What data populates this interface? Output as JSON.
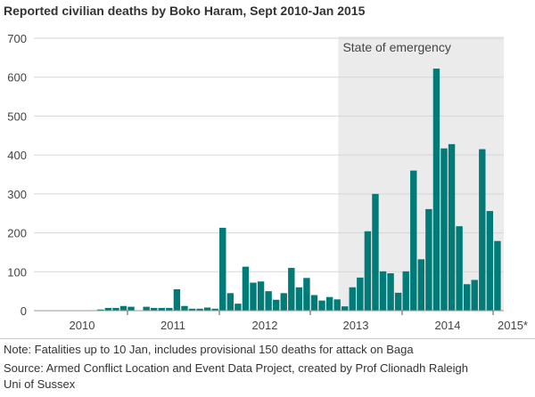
{
  "chart_data": {
    "type": "bar",
    "title": "Reported civilian deaths by Boko Haram, Sept 2010-Jan 2015",
    "xlabel": "",
    "ylabel": "",
    "ylim": [
      0,
      700
    ],
    "yticks": [
      "0",
      "100",
      "200",
      "300",
      "400",
      "500",
      "600",
      "700"
    ],
    "xticks": [
      "2010",
      "2011",
      "2012",
      "2013",
      "2014",
      "2015*"
    ],
    "grid": true,
    "categories": [
      "2010-09",
      "2010-10",
      "2010-11",
      "2010-12",
      "2011-01",
      "2011-02",
      "2011-03",
      "2011-04",
      "2011-05",
      "2011-06",
      "2011-07",
      "2011-08",
      "2011-09",
      "2011-10",
      "2011-11",
      "2011-12",
      "2012-01",
      "2012-02",
      "2012-03",
      "2012-04",
      "2012-05",
      "2012-06",
      "2012-07",
      "2012-08",
      "2012-09",
      "2012-10",
      "2012-11",
      "2012-12",
      "2013-01",
      "2013-02",
      "2013-03",
      "2013-04",
      "2013-05",
      "2013-06",
      "2013-07",
      "2013-08",
      "2013-09",
      "2013-10",
      "2013-11",
      "2013-12",
      "2014-01",
      "2014-02",
      "2014-03",
      "2014-04",
      "2014-05",
      "2014-06",
      "2014-07",
      "2014-08",
      "2014-09",
      "2014-10",
      "2014-11",
      "2014-12",
      "2015-01"
    ],
    "values": [
      3,
      7,
      7,
      12,
      10,
      0,
      10,
      7,
      7,
      7,
      55,
      12,
      5,
      5,
      8,
      5,
      213,
      45,
      18,
      113,
      72,
      75,
      50,
      28,
      45,
      110,
      60,
      84,
      40,
      26,
      35,
      29,
      11,
      60,
      85,
      204,
      300,
      101,
      96,
      46,
      101,
      360,
      132,
      261,
      622,
      417,
      428,
      217,
      68,
      79,
      415,
      256,
      179
    ],
    "annotation": {
      "label": "State of emergency",
      "from": "2013-05",
      "to": "2015-01"
    },
    "colors": {
      "bar": "#007b78",
      "shade": "#ebebeb",
      "grid": "#d6d6d6"
    }
  },
  "notes": {
    "note": "Note: Fatalities up to 10 Jan, includes provisional 150 deaths for attack on Baga",
    "source_line1": "Source: Armed Conflict Location and Event Data Project, created by Prof Clionadh Raleigh",
    "source_line2": "Uni of Sussex"
  }
}
